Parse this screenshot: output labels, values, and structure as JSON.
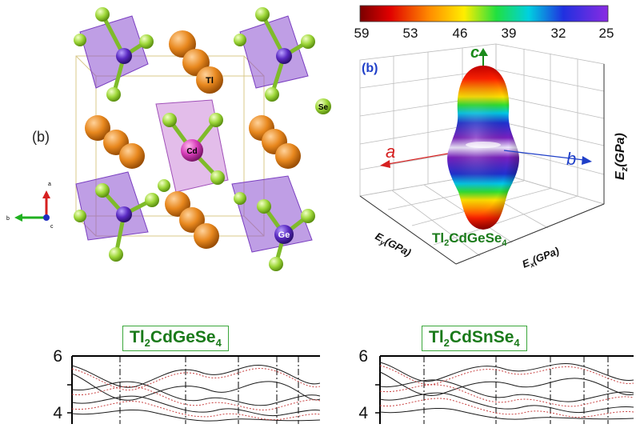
{
  "crystal_panel": {
    "panel_label": "(b)",
    "atom_labels": {
      "tl": "Tl",
      "cd": "Cd",
      "se": "Se",
      "ge": "Ge"
    },
    "axis_labels": {
      "a": "a",
      "b": "b",
      "c": "c"
    }
  },
  "elastic_panel": {
    "panel_label": "(b)",
    "colorbar_ticks": [
      "59",
      "53",
      "46",
      "39",
      "32",
      "25"
    ],
    "axis_letters": {
      "a": "a",
      "b": "b",
      "c": "c"
    },
    "z_label": "E",
    "z_sub": "z",
    "z_unit": "(GPa)",
    "y_label": "E",
    "y_sub": "y",
    "y_unit": "(GPa)",
    "x_label": "E",
    "x_sub": "x",
    "x_unit": "(GPa)",
    "compound": {
      "a": "Tl",
      "s1": "2",
      "b": "CdGeSe",
      "s2": "4"
    },
    "colors": {
      "a_axis": "#d62020",
      "b_axis": "#1f3fc8",
      "c_axis": "#1a8a1a",
      "compound": "#1a7a1a"
    }
  },
  "band_panels": [
    {
      "compound": {
        "a": "Tl",
        "s1": "2",
        "b": "CdGeSe",
        "s2": "4"
      },
      "y_ticks": [
        "6",
        "4"
      ]
    },
    {
      "compound": {
        "a": "Tl",
        "s1": "2",
        "b": "CdSnSe",
        "s2": "4"
      },
      "y_ticks": [
        "6",
        "4"
      ]
    }
  ]
}
